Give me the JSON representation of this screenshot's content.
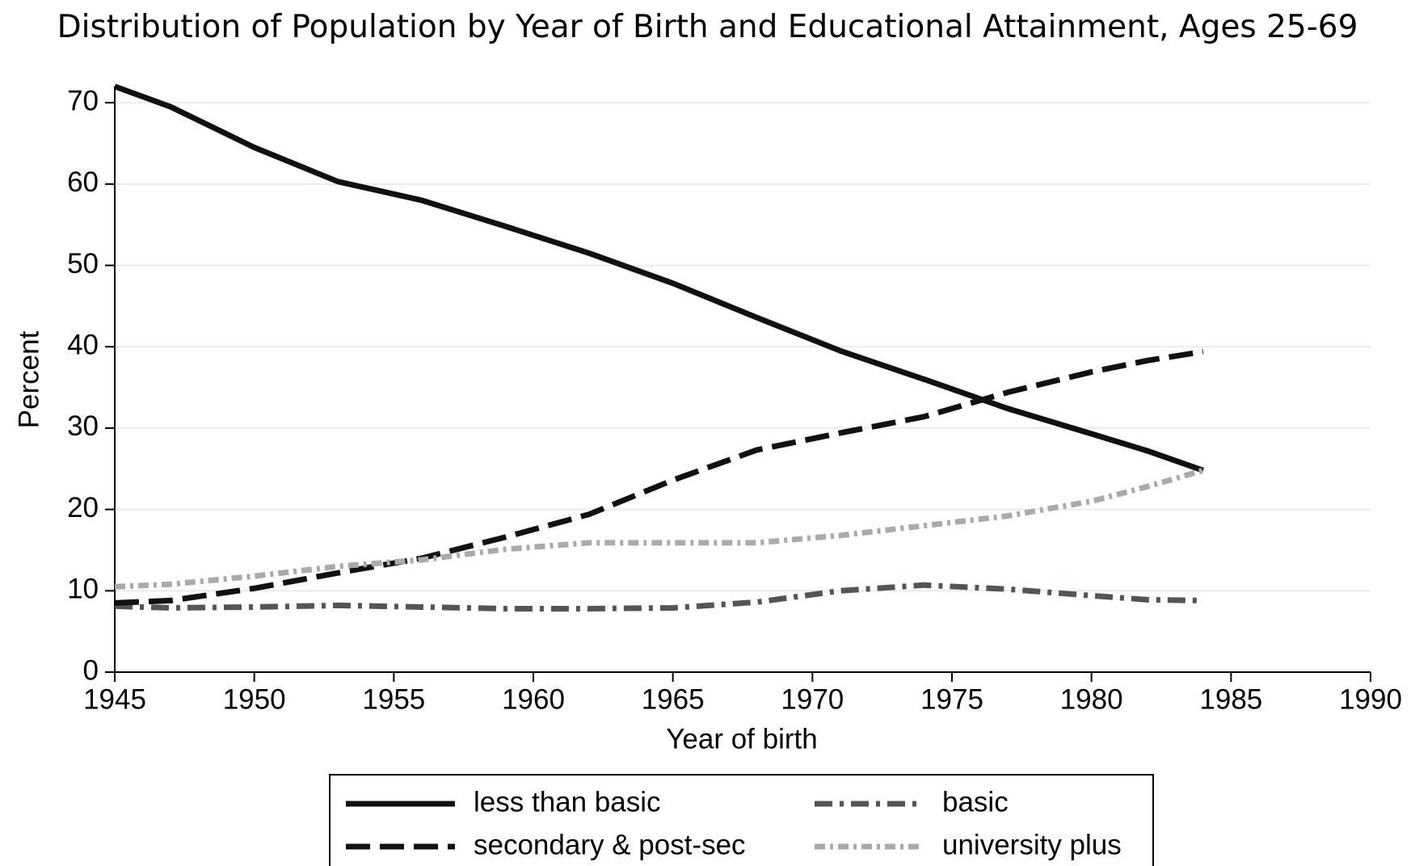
{
  "chart_data": {
    "type": "line",
    "title": "Distribution of Population by Year of Birth and Educational Attainment, Ages 25-69",
    "xlabel": "Year of birth",
    "ylabel": "Percent",
    "x": [
      1945,
      1947,
      1950,
      1953,
      1956,
      1959,
      1962,
      1965,
      1968,
      1971,
      1974,
      1977,
      1980,
      1982,
      1984
    ],
    "series": [
      {
        "name": "less than basic",
        "color": "#111111",
        "linestyle": "solid",
        "values": [
          72,
          69.5,
          64.5,
          60.3,
          58,
          54.8,
          51.5,
          47.8,
          43.6,
          39.5,
          36,
          32.4,
          29.3,
          27.2,
          24.8
        ]
      },
      {
        "name": "basic",
        "color": "#555555",
        "linestyle": "dashdot",
        "values": [
          8.1,
          7.9,
          8,
          8.2,
          8,
          7.8,
          7.8,
          7.9,
          8.6,
          10,
          10.7,
          10.2,
          9.4,
          8.9,
          8.8
        ]
      },
      {
        "name": "secondary & post-sec",
        "color": "#111111",
        "linestyle": "dashed",
        "values": [
          8.5,
          8.8,
          10.3,
          12.2,
          14,
          16.6,
          19.4,
          23.6,
          27.3,
          29.4,
          31.4,
          34.4,
          36.9,
          38.3,
          39.4
        ]
      },
      {
        "name": "university plus",
        "color": "#aaaaaa",
        "linestyle": "dotted",
        "values": [
          10.5,
          10.8,
          11.8,
          13,
          13.8,
          15.1,
          15.9,
          15.9,
          15.9,
          16.8,
          18,
          19.2,
          21,
          22.8,
          24.8
        ]
      }
    ],
    "xlim": [
      1945,
      1990
    ],
    "xticks": [
      1945,
      1950,
      1955,
      1960,
      1965,
      1970,
      1975,
      1980,
      1985,
      1990
    ],
    "ylim": [
      0,
      72
    ],
    "yticks": [
      0,
      10,
      20,
      30,
      40,
      50,
      60,
      70
    ],
    "grid": true,
    "legend": "bottom"
  }
}
